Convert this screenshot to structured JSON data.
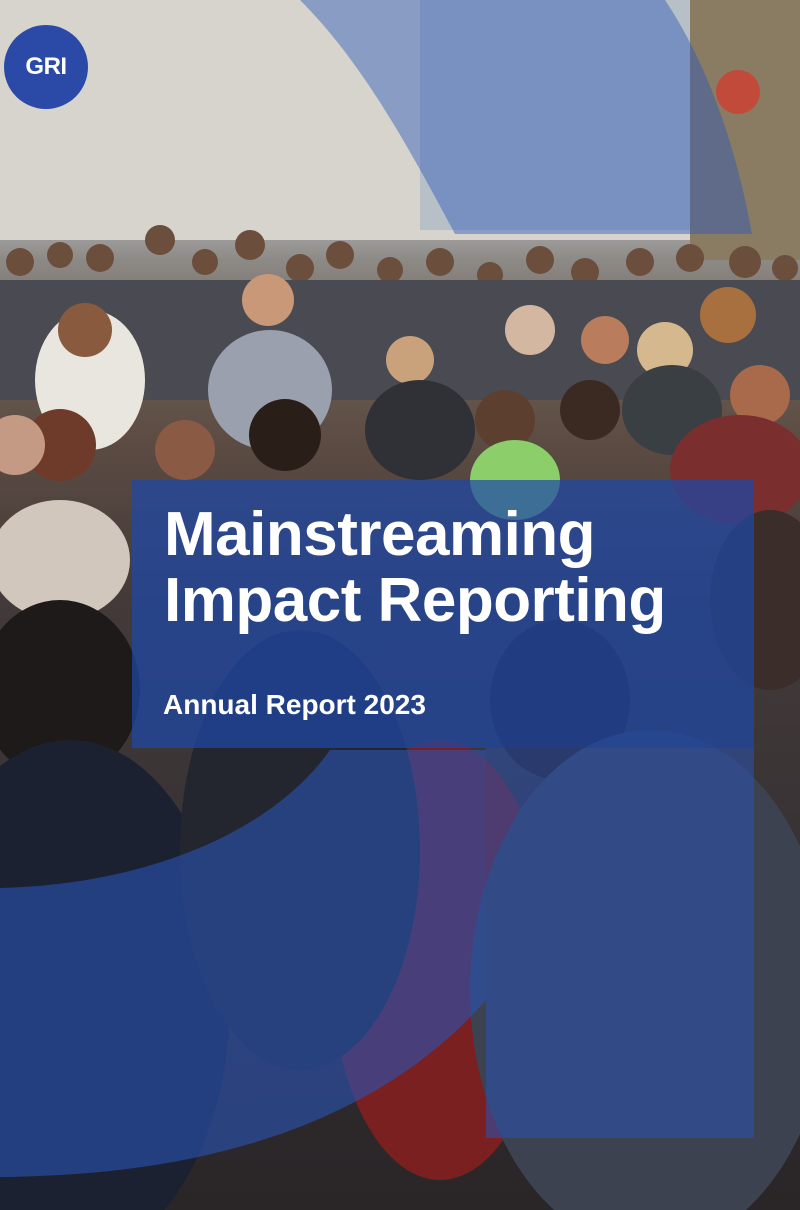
{
  "logo": {
    "text": "GRI",
    "color": "#2b4aa8"
  },
  "title": {
    "line1": "Mainstreaming",
    "line2": "Impact Reporting"
  },
  "subtitle": "Annual Report 2023",
  "colors": {
    "brand_blue": "#2b4aa8",
    "overlay_blue": "#1f3f8f",
    "text": "#ffffff"
  },
  "background": {
    "image": "crowd-of-people-walking-photo"
  }
}
